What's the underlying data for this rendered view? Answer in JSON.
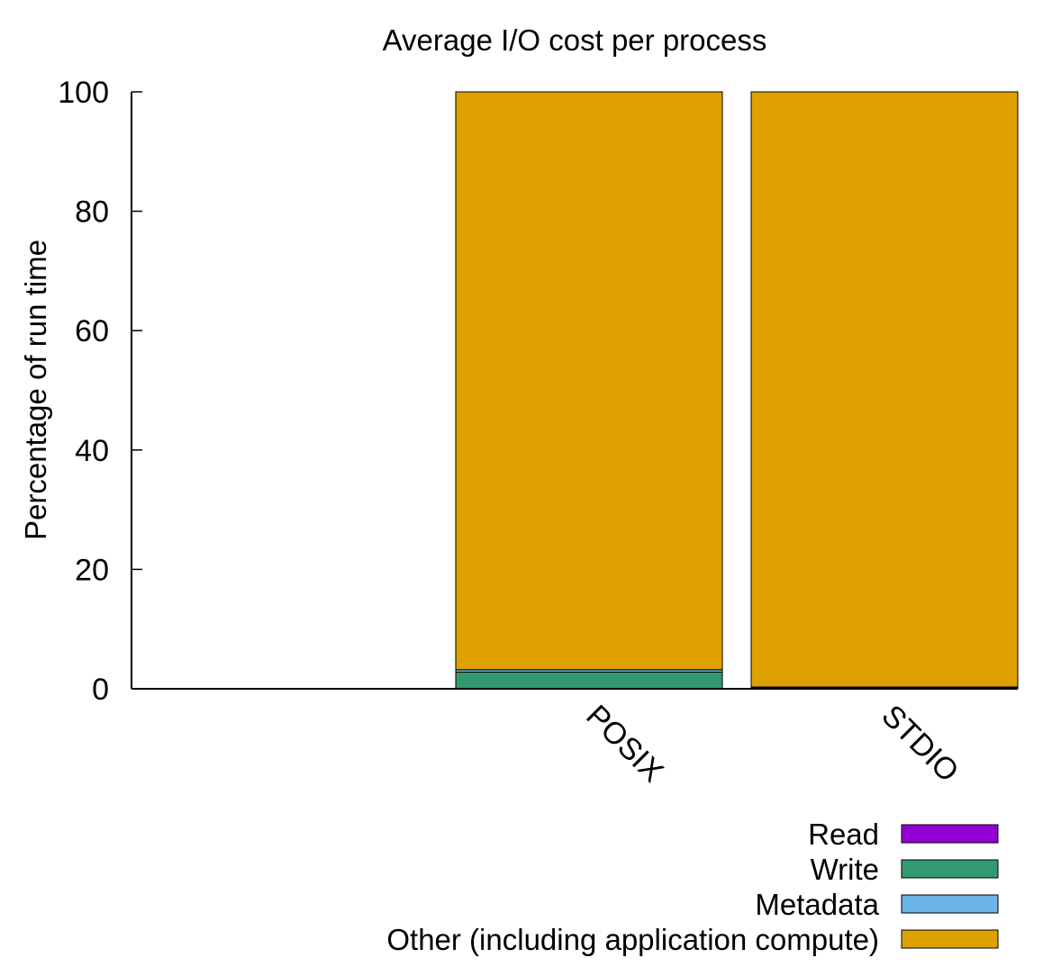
{
  "chart_data": {
    "type": "bar",
    "stacked": true,
    "title": "Average I/O cost per process",
    "xlabel": "",
    "ylabel": "Percentage of run time",
    "ylim": [
      0,
      100
    ],
    "yticks": [
      0,
      20,
      40,
      60,
      80,
      100
    ],
    "grid": false,
    "legend_position": "bottom-right",
    "categories": [
      "POSIX",
      "STDIO"
    ],
    "series": [
      {
        "name": "Read",
        "color": "#9400d3",
        "values": [
          0.0,
          0.0
        ]
      },
      {
        "name": "Write",
        "color": "#339970",
        "values": [
          2.8,
          0.2
        ]
      },
      {
        "name": "Metadata",
        "color": "#6cb4e8",
        "values": [
          0.4,
          0.1
        ]
      },
      {
        "name": "Other (including application compute)",
        "color": "#dea100",
        "values": [
          96.8,
          99.7
        ]
      }
    ]
  }
}
